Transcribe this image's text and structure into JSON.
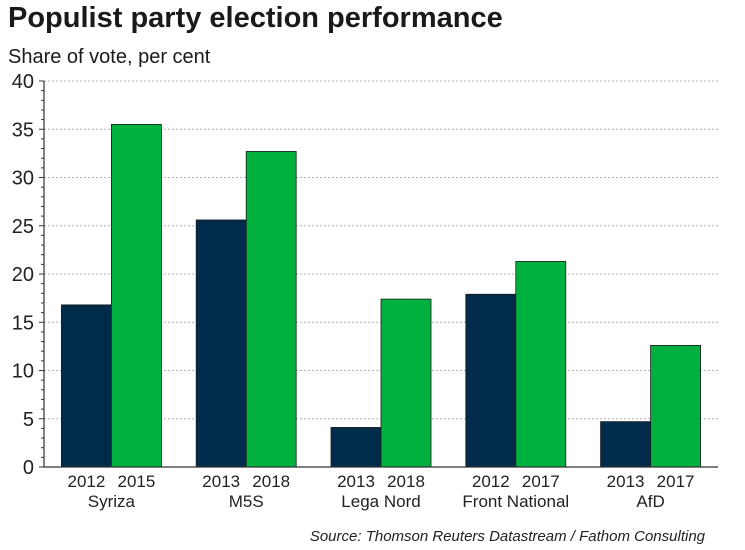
{
  "chart_data": {
    "type": "bar",
    "title": "Populist party election performance",
    "subtitle": "Share of vote, per cent",
    "ylim": [
      0,
      40
    ],
    "yticks": [
      0,
      5,
      10,
      15,
      20,
      25,
      30,
      35,
      40
    ],
    "grid": true,
    "colors": {
      "first": "#002b4a",
      "second": "#00b140",
      "grid": "#b0b0b0",
      "axis": "#333333"
    },
    "groups": [
      {
        "party": "Syriza",
        "bars": [
          {
            "year": "2012",
            "value": 16.8
          },
          {
            "year": "2015",
            "value": 35.5
          }
        ]
      },
      {
        "party": "M5S",
        "bars": [
          {
            "year": "2013",
            "value": 25.6
          },
          {
            "year": "2018",
            "value": 32.7
          }
        ]
      },
      {
        "party": "Lega Nord",
        "bars": [
          {
            "year": "2013",
            "value": 4.1
          },
          {
            "year": "2018",
            "value": 17.4
          }
        ]
      },
      {
        "party": "Front National",
        "bars": [
          {
            "year": "2012",
            "value": 17.9
          },
          {
            "year": "2017",
            "value": 21.3
          }
        ]
      },
      {
        "party": "AfD",
        "bars": [
          {
            "year": "2013",
            "value": 4.7
          },
          {
            "year": "2017",
            "value": 12.6
          }
        ]
      }
    ],
    "source": "Source: Thomson Reuters Datastream / Fathom Consulting"
  }
}
